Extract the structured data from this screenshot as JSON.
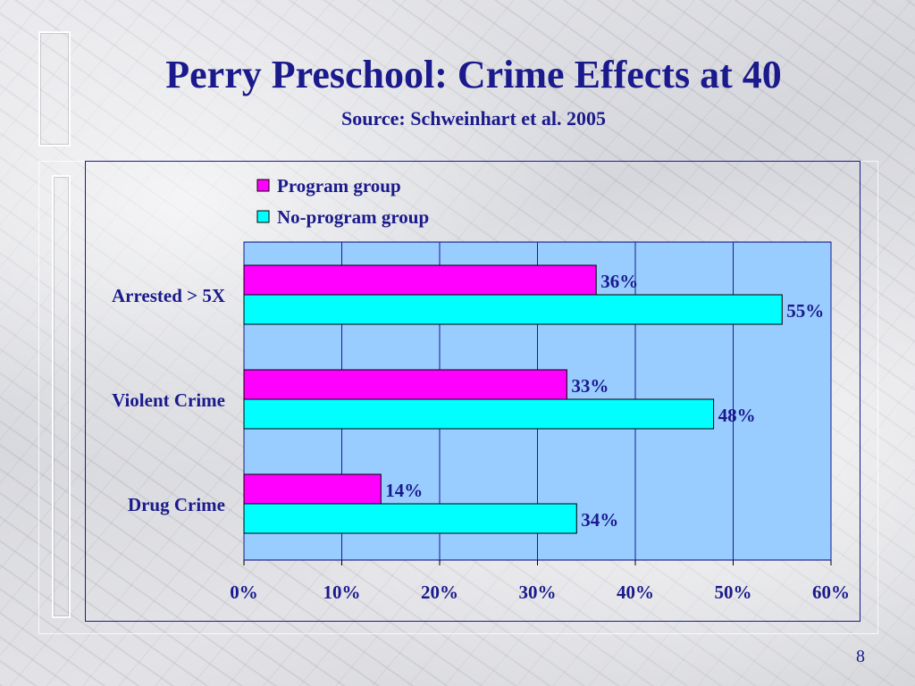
{
  "slide": {
    "title": "Perry Preschool: Crime Effects at 40",
    "subtitle": "Source: Schweinhart et al. 2005",
    "page_number": "8"
  },
  "colors": {
    "title": "#1a1a8c",
    "plot_bg": "#99ccff",
    "program": "#ff00ff",
    "no_program": "#00ffff",
    "gridline": "#1a1a8c"
  },
  "chart_data": {
    "type": "bar",
    "orientation": "horizontal",
    "categories": [
      "Arrested > 5X",
      "Violent Crime",
      "Drug Crime"
    ],
    "series": [
      {
        "name": "Program group",
        "values": [
          36,
          33,
          14
        ],
        "labels": [
          "36%",
          "33%",
          "14%"
        ]
      },
      {
        "name": "No-program group",
        "values": [
          55,
          48,
          34
        ],
        "labels": [
          "55%",
          "48%",
          "34%"
        ]
      }
    ],
    "xlim": [
      0,
      60
    ],
    "x_ticks": [
      0,
      10,
      20,
      30,
      40,
      50,
      60
    ],
    "x_tick_labels": [
      "0%",
      "10%",
      "20%",
      "30%",
      "40%",
      "50%",
      "60%"
    ],
    "grid": true,
    "legend_position": "top"
  }
}
